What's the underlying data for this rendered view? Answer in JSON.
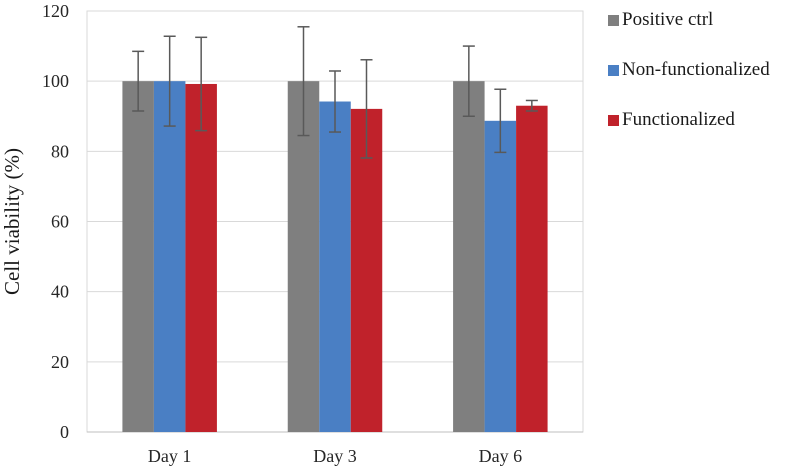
{
  "chart_data": {
    "type": "bar",
    "title": "",
    "xlabel": "",
    "ylabel": "Cell viability (%)",
    "categories": [
      "Day 1",
      "Day 3",
      "Day 6"
    ],
    "ylim": [
      0,
      120
    ],
    "yticks": [
      0,
      20,
      40,
      60,
      80,
      100,
      120
    ],
    "grid": "horizontal",
    "legend_position": "right",
    "series": [
      {
        "name": "Positive ctrl",
        "color": "#7f7f7f",
        "values": [
          100,
          100,
          100
        ],
        "errors": [
          8.5,
          15.5,
          10
        ]
      },
      {
        "name": "Non-functionalized",
        "color": "#4a7fc4",
        "values": [
          100,
          94.2,
          88.7
        ],
        "errors": [
          12.8,
          8.7,
          9
        ]
      },
      {
        "name": "Functionalized",
        "color": "#c0222b",
        "values": [
          99.2,
          92.1,
          93
        ],
        "errors": [
          13.3,
          14,
          1.5
        ]
      }
    ]
  }
}
